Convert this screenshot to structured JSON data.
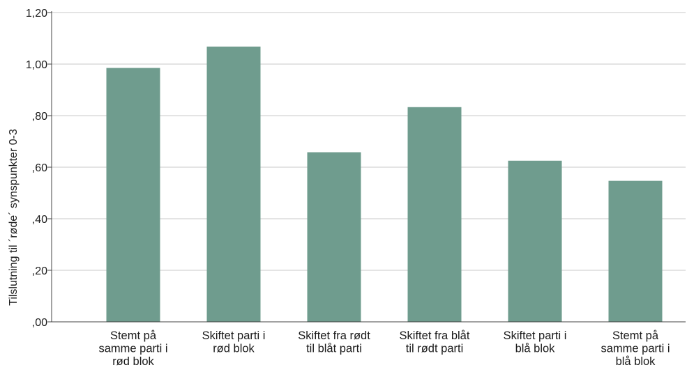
{
  "chart_data": {
    "type": "bar",
    "ylabel": "Tilslutning til ´røde´ synspunkter 0-3",
    "ylim": [
      0,
      1.2
    ],
    "yticks": [
      {
        "value": 0,
        "label": ",00"
      },
      {
        "value": 0.2,
        "label": ",20"
      },
      {
        "value": 0.4,
        "label": ",40"
      },
      {
        "value": 0.6,
        "label": ",60"
      },
      {
        "value": 0.8,
        "label": ",80"
      },
      {
        "value": 1.0,
        "label": "1,00"
      },
      {
        "value": 1.2,
        "label": "1,20"
      }
    ],
    "grid": true,
    "categories": [
      [
        "Stemt på",
        "samme parti i",
        "rød blok"
      ],
      [
        "Skiftet parti i",
        "rød blok"
      ],
      [
        "Skiftet fra rødt",
        "til blåt parti"
      ],
      [
        "Skiftet fra blåt",
        "til rødt parti"
      ],
      [
        "Skiftet parti i",
        "blå blok"
      ],
      [
        "Stemt på",
        "samme parti i",
        "blå blok"
      ]
    ],
    "values": [
      0.985,
      1.068,
      0.658,
      0.833,
      0.625,
      0.547
    ],
    "colors": {
      "bar": "#6f9c8e",
      "grid": "#c8c8c8",
      "axis": "#444444"
    }
  }
}
